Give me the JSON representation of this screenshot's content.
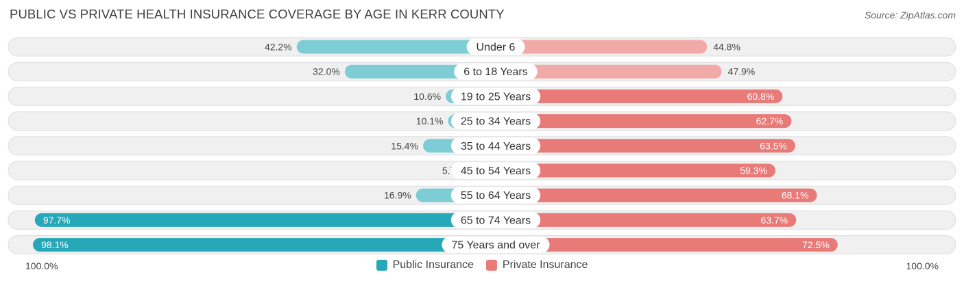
{
  "title": "PUBLIC VS PRIVATE HEALTH INSURANCE COVERAGE BY AGE IN KERR COUNTY",
  "source": "Source: ZipAtlas.com",
  "colors": {
    "public_dark": "#27a8b8",
    "public_light": "#7ecdd5",
    "private_dark": "#e87a78",
    "private_light": "#f2aaa8",
    "row_bg": "#f0f0f0",
    "row_border": "#dedede"
  },
  "chart_data": {
    "type": "bar",
    "orientation": "horizontal-diverging",
    "categories": [
      "Under 6",
      "6 to 18 Years",
      "19 to 25 Years",
      "25 to 34 Years",
      "35 to 44 Years",
      "45 to 54 Years",
      "55 to 64 Years",
      "65 to 74 Years",
      "75 Years and over"
    ],
    "series": [
      {
        "name": "Public Insurance",
        "values": [
          42.2,
          32.0,
          10.6,
          10.1,
          15.4,
          5.7,
          16.9,
          97.7,
          98.1
        ],
        "labels": [
          "42.2%",
          "32.0%",
          "10.6%",
          "10.1%",
          "15.4%",
          "5.7%",
          "16.9%",
          "97.7%",
          "98.1%"
        ]
      },
      {
        "name": "Private Insurance",
        "values": [
          44.8,
          47.9,
          60.8,
          62.7,
          63.5,
          59.3,
          68.1,
          63.7,
          72.5
        ],
        "labels": [
          "44.8%",
          "47.9%",
          "60.8%",
          "62.7%",
          "63.5%",
          "59.3%",
          "68.1%",
          "63.7%",
          "72.5%"
        ]
      }
    ],
    "xlim": [
      0,
      100
    ],
    "axis_left_label": "100.0%",
    "axis_right_label": "100.0%",
    "legend_position": "bottom-center"
  }
}
